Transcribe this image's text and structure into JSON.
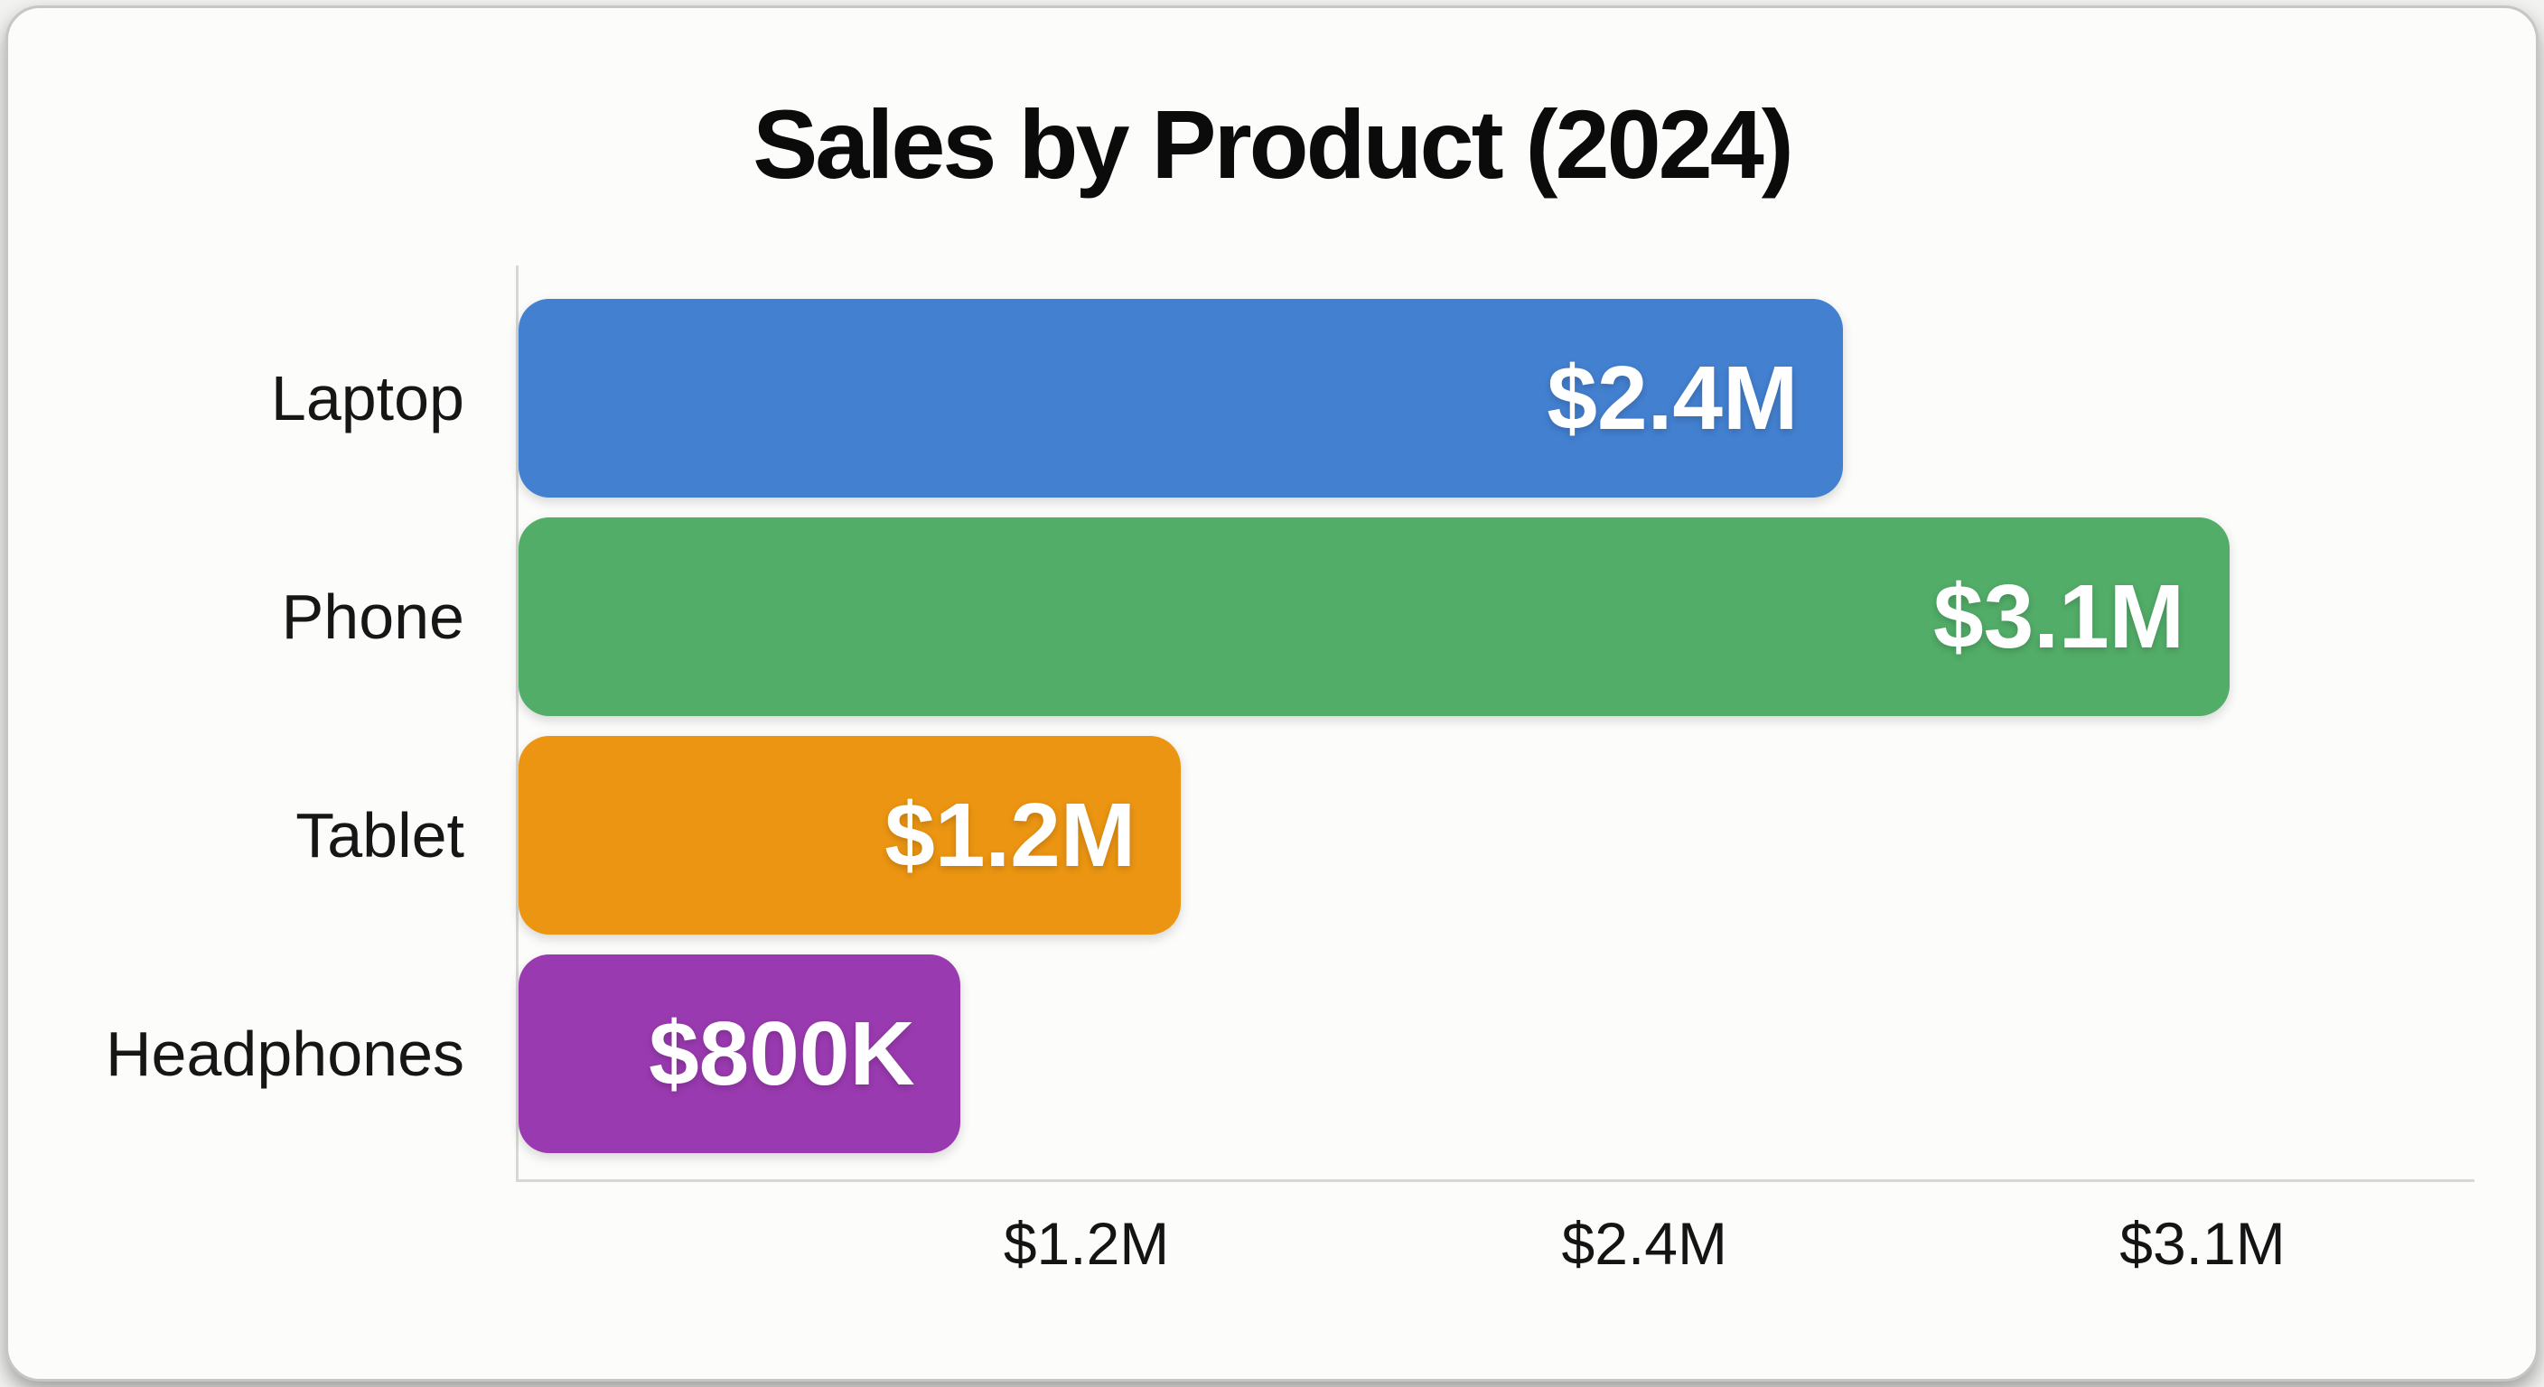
{
  "page": {
    "card_bg": "#fcfcfb",
    "card_border": "#c6c6c2",
    "axis_color": "#d7d7d3",
    "text_color": "#141414"
  },
  "chart_data": {
    "type": "bar",
    "orientation": "horizontal",
    "title": "Sales by Product (2024)",
    "categories": [
      "Laptop",
      "Phone",
      "Tablet",
      "Headphones"
    ],
    "values": [
      2400000,
      3100000,
      1200000,
      800000
    ],
    "value_labels": [
      "$2.4M",
      "$3.1M",
      "$1.2M",
      "$800K"
    ],
    "bar_colors": [
      "#4380d0",
      "#52ad68",
      "#ec9512",
      "#9a3ab0"
    ],
    "value_label_color": "#ffffff",
    "xlabel": "",
    "ylabel": "",
    "xlim": [
      0,
      3560000
    ],
    "x_ticks": [
      {
        "label": "$1.2M",
        "pos": 0.289
      },
      {
        "label": "$2.4M",
        "pos": 0.573
      },
      {
        "label": "$3.1M",
        "pos": 0.857
      }
    ],
    "grid": false,
    "legend": false
  }
}
